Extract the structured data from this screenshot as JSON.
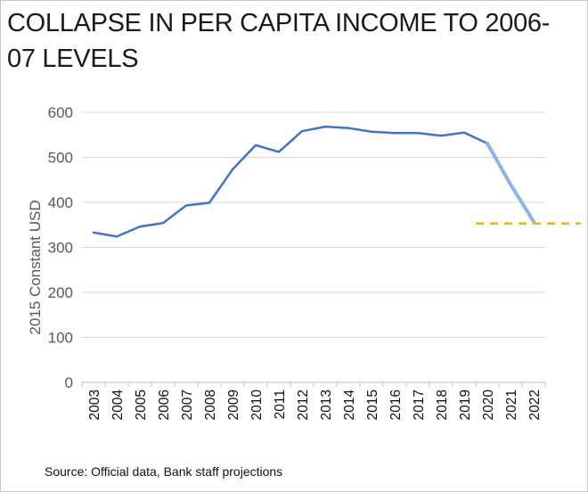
{
  "title": "COLLAPSE IN PER CAPITA INCOME TO 2006-07 LEVELS",
  "source": "Source: Official data, Bank staff projections",
  "chart_data": {
    "type": "line",
    "title": "COLLAPSE IN PER CAPITA INCOME TO 2006-07 LEVELS",
    "xlabel": "",
    "ylabel": "2015 Constant USD",
    "categories": [
      "2003",
      "2004",
      "2005",
      "2006",
      "2007",
      "2008",
      "2009",
      "2010",
      "2011",
      "2012",
      "2013",
      "2014",
      "2015",
      "2016",
      "2017",
      "2018",
      "2019",
      "2020",
      "2021",
      "2022"
    ],
    "series": [
      {
        "values": [
          333,
          324,
          346,
          354,
          393,
          399,
          473,
          527,
          512,
          558,
          568,
          565,
          557,
          554,
          554,
          548,
          555,
          531,
          null,
          null
        ],
        "color": "#4472c4",
        "style": "solid"
      },
      {
        "values": [
          null,
          null,
          null,
          null,
          null,
          null,
          null,
          null,
          null,
          null,
          null,
          null,
          null,
          null,
          null,
          null,
          null,
          531,
          440,
          357
        ],
        "color": "#8eb4e3",
        "style": "solid"
      }
    ],
    "reference_line": {
      "value": 353,
      "color": "#f4b400",
      "style": "dashed",
      "from_category": "2020"
    },
    "ylim": [
      0,
      600
    ],
    "yticks": [
      0,
      100,
      200,
      300,
      400,
      500,
      600
    ],
    "grid": true
  }
}
